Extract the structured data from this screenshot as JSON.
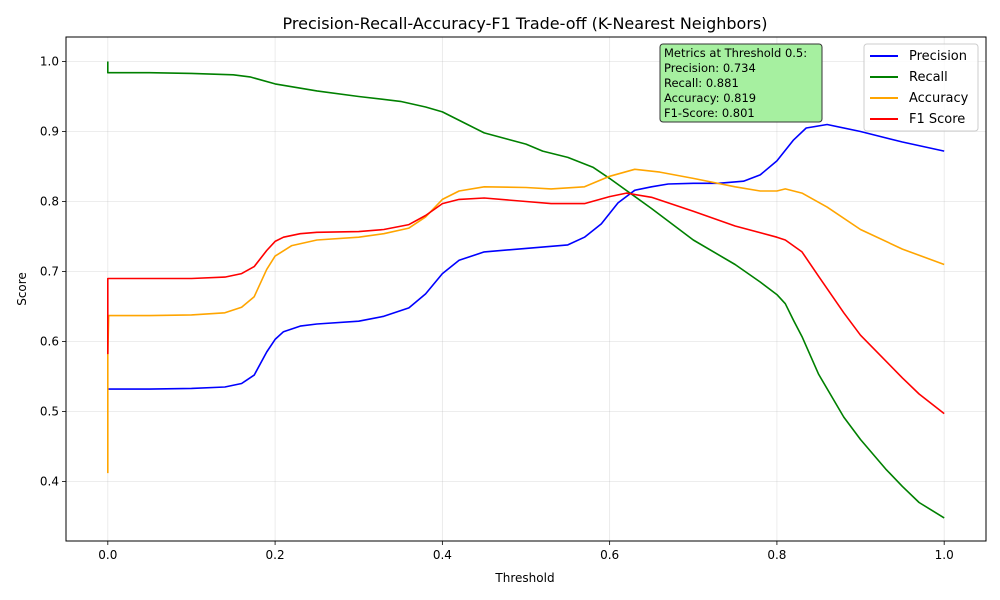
{
  "chart_data": {
    "type": "line",
    "title": "Precision-Recall-Accuracy-F1 Trade-off (K-Nearest Neighbors)",
    "xlabel": "Threshold",
    "ylabel": "Score",
    "xlim": [
      -0.05,
      1.05
    ],
    "ylim": [
      0.315,
      1.035
    ],
    "xticks": [
      0.0,
      0.2,
      0.4,
      0.6,
      0.8,
      1.0
    ],
    "xtick_labels": [
      "0.0",
      "0.2",
      "0.4",
      "0.6",
      "0.8",
      "1.0"
    ],
    "yticks": [
      0.4,
      0.5,
      0.6,
      0.7,
      0.8,
      0.9,
      1.0
    ],
    "ytick_labels": [
      "0.4",
      "0.5",
      "0.6",
      "0.7",
      "0.8",
      "0.9",
      "1.0"
    ],
    "grid": true,
    "legend_position": "top-right",
    "annotation": {
      "lines": [
        "Metrics at Threshold 0.5:",
        "Precision: 0.734",
        "Recall: 0.881",
        "Accuracy: 0.819",
        "F1-Score: 0.801"
      ],
      "background": "#a6f0a0",
      "border": "#333333"
    },
    "series": [
      {
        "name": "Precision",
        "color": "#0000ff",
        "x": [
          0.0,
          0.0,
          0.001,
          0.05,
          0.1,
          0.14,
          0.16,
          0.175,
          0.19,
          0.2,
          0.21,
          0.23,
          0.25,
          0.3,
          0.33,
          0.36,
          0.38,
          0.4,
          0.42,
          0.45,
          0.5,
          0.55,
          0.57,
          0.59,
          0.61,
          0.63,
          0.65,
          0.67,
          0.7,
          0.73,
          0.76,
          0.78,
          0.8,
          0.82,
          0.835,
          0.86,
          0.9,
          0.95,
          1.0
        ],
        "y": [
          0.532,
          0.532,
          0.532,
          0.532,
          0.533,
          0.535,
          0.54,
          0.552,
          0.585,
          0.603,
          0.614,
          0.622,
          0.625,
          0.629,
          0.636,
          0.648,
          0.668,
          0.697,
          0.716,
          0.728,
          0.733,
          0.738,
          0.749,
          0.768,
          0.798,
          0.816,
          0.821,
          0.825,
          0.826,
          0.826,
          0.829,
          0.838,
          0.858,
          0.888,
          0.905,
          0.91,
          0.9,
          0.885,
          0.872
        ]
      },
      {
        "name": "Recall",
        "color": "#008000",
        "x": [
          0.0,
          0.0,
          0.002,
          0.05,
          0.1,
          0.15,
          0.17,
          0.2,
          0.25,
          0.3,
          0.35,
          0.38,
          0.4,
          0.43,
          0.45,
          0.5,
          0.52,
          0.55,
          0.58,
          0.6,
          0.65,
          0.7,
          0.75,
          0.78,
          0.8,
          0.81,
          0.82,
          0.83,
          0.85,
          0.88,
          0.9,
          0.93,
          0.95,
          0.97,
          1.0
        ],
        "y": [
          1.0,
          0.984,
          0.984,
          0.984,
          0.983,
          0.981,
          0.978,
          0.968,
          0.958,
          0.95,
          0.943,
          0.935,
          0.928,
          0.91,
          0.898,
          0.882,
          0.872,
          0.863,
          0.849,
          0.833,
          0.79,
          0.745,
          0.71,
          0.685,
          0.667,
          0.654,
          0.63,
          0.607,
          0.553,
          0.492,
          0.46,
          0.418,
          0.393,
          0.37,
          0.348
        ]
      },
      {
        "name": "Accuracy",
        "color": "#ffa500",
        "x": [
          0.0,
          0.0,
          0.001,
          0.05,
          0.1,
          0.14,
          0.16,
          0.175,
          0.19,
          0.2,
          0.22,
          0.25,
          0.3,
          0.33,
          0.36,
          0.38,
          0.4,
          0.42,
          0.45,
          0.5,
          0.53,
          0.57,
          0.6,
          0.63,
          0.66,
          0.7,
          0.75,
          0.78,
          0.8,
          0.81,
          0.83,
          0.86,
          0.9,
          0.95,
          1.0
        ],
        "y": [
          0.412,
          0.582,
          0.637,
          0.637,
          0.638,
          0.641,
          0.649,
          0.664,
          0.703,
          0.722,
          0.737,
          0.745,
          0.749,
          0.754,
          0.762,
          0.778,
          0.803,
          0.815,
          0.821,
          0.82,
          0.818,
          0.821,
          0.836,
          0.846,
          0.842,
          0.833,
          0.821,
          0.815,
          0.815,
          0.818,
          0.812,
          0.792,
          0.76,
          0.732,
          0.71
        ]
      },
      {
        "name": "F1 Score",
        "color": "#ff0000",
        "x": [
          0.0,
          0.0,
          0.001,
          0.05,
          0.1,
          0.14,
          0.16,
          0.175,
          0.19,
          0.2,
          0.21,
          0.23,
          0.25,
          0.3,
          0.33,
          0.36,
          0.38,
          0.4,
          0.42,
          0.45,
          0.5,
          0.53,
          0.57,
          0.6,
          0.62,
          0.65,
          0.7,
          0.75,
          0.8,
          0.81,
          0.83,
          0.85,
          0.88,
          0.9,
          0.95,
          0.97,
          1.0
        ],
        "y": [
          0.582,
          0.69,
          0.69,
          0.69,
          0.69,
          0.692,
          0.697,
          0.707,
          0.73,
          0.743,
          0.749,
          0.754,
          0.756,
          0.757,
          0.76,
          0.767,
          0.78,
          0.797,
          0.803,
          0.805,
          0.8,
          0.797,
          0.797,
          0.807,
          0.812,
          0.806,
          0.786,
          0.765,
          0.749,
          0.745,
          0.728,
          0.693,
          0.641,
          0.609,
          0.548,
          0.525,
          0.497
        ]
      }
    ]
  }
}
